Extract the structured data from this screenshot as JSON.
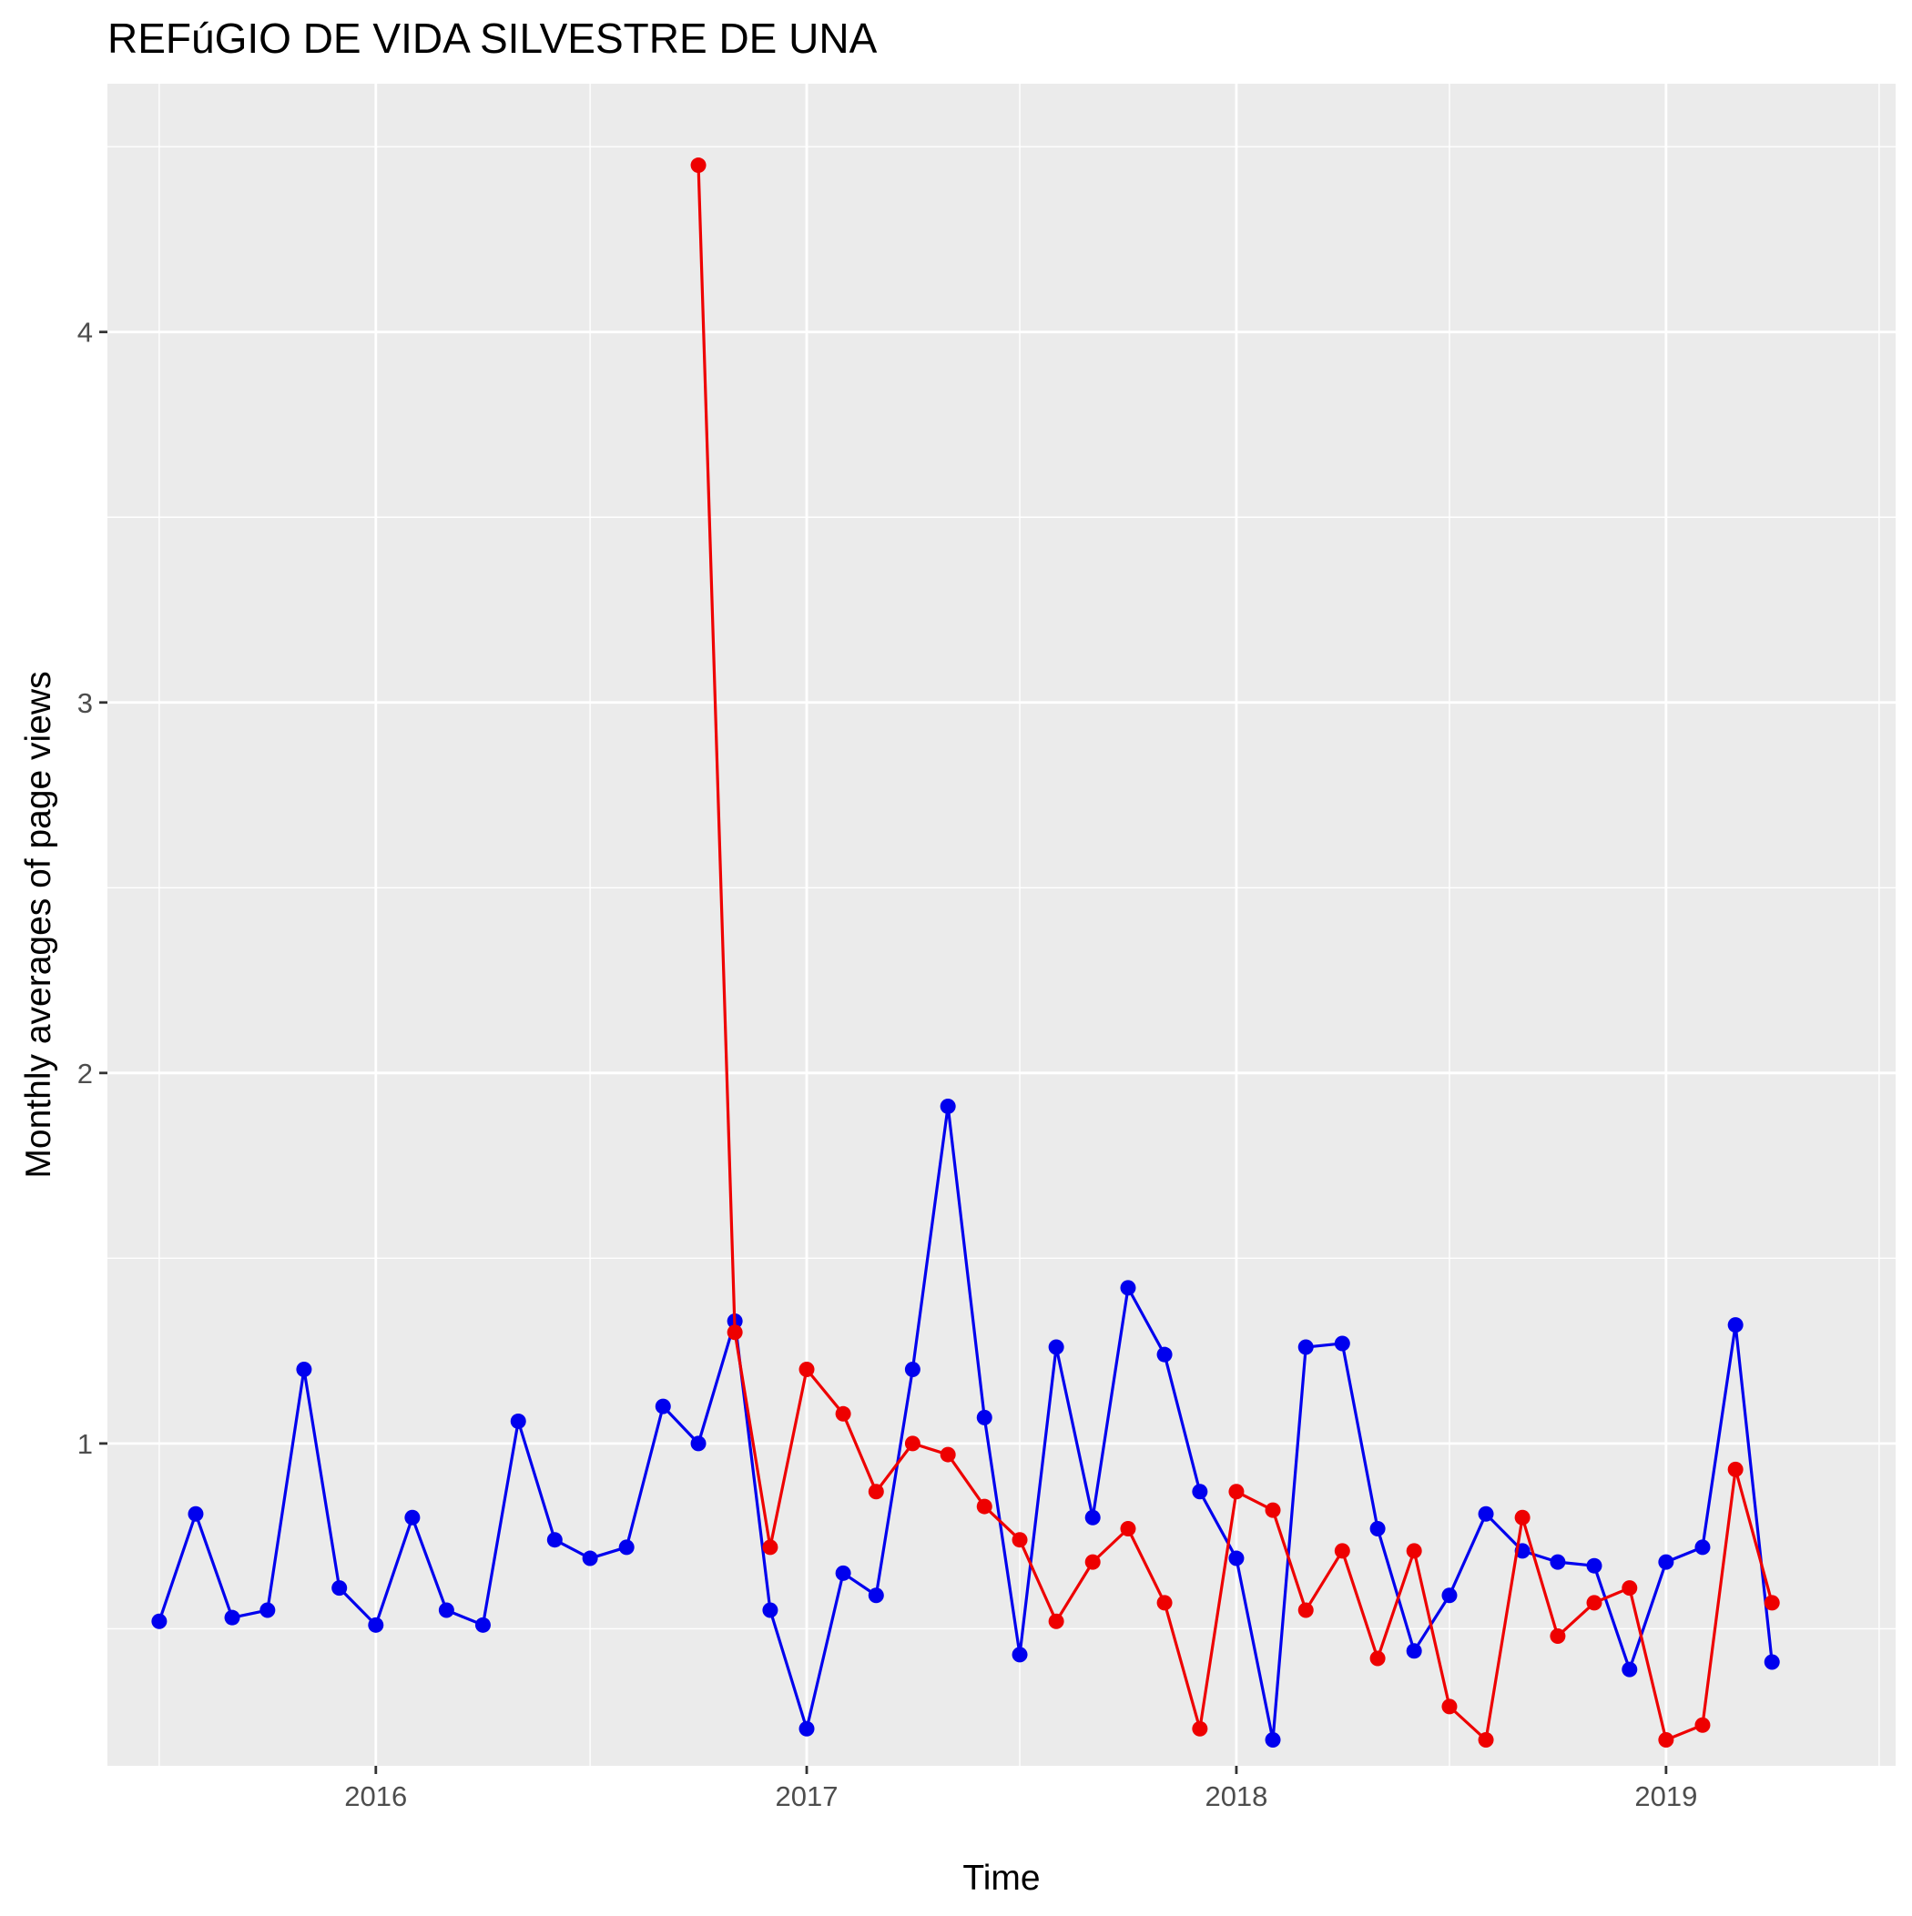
{
  "chart_data": {
    "type": "line",
    "title": "REFúGIO DE VIDA SILVESTRE DE UNA",
    "xlabel": "Time",
    "ylabel": "Monthly averages of page views",
    "x_ticks": [
      "2016",
      "2017",
      "2018",
      "2019"
    ],
    "y_ticks": [
      "1",
      "2",
      "3",
      "4"
    ],
    "xlim": [
      "2015-05-18",
      "2019-07-15"
    ],
    "ylim": [
      0.13,
      4.67
    ],
    "grid": true,
    "legend": "none",
    "colors": {
      "panel": "#ebebeb",
      "grid": "#ffffff",
      "series_1": "#0000ee",
      "series_2": "#ee0000"
    },
    "series": [
      {
        "color": "#0000ee",
        "points": [
          [
            "2015-07-01",
            0.52
          ],
          [
            "2015-08-01",
            0.81
          ],
          [
            "2015-09-01",
            0.53
          ],
          [
            "2015-10-01",
            0.55
          ],
          [
            "2015-11-01",
            1.2
          ],
          [
            "2015-12-01",
            0.61
          ],
          [
            "2016-01-01",
            0.51
          ],
          [
            "2016-02-01",
            0.8
          ],
          [
            "2016-03-01",
            0.55
          ],
          [
            "2016-04-01",
            0.51
          ],
          [
            "2016-05-01",
            1.06
          ],
          [
            "2016-06-01",
            0.74
          ],
          [
            "2016-07-01",
            0.69
          ],
          [
            "2016-08-01",
            0.72
          ],
          [
            "2016-09-01",
            1.1
          ],
          [
            "2016-10-01",
            1.0
          ],
          [
            "2016-11-01",
            1.33
          ],
          [
            "2016-12-01",
            0.55
          ],
          [
            "2017-01-01",
            0.23
          ],
          [
            "2017-02-01",
            0.65
          ],
          [
            "2017-03-01",
            0.59
          ],
          [
            "2017-04-01",
            1.2
          ],
          [
            "2017-05-01",
            1.91
          ],
          [
            "2017-06-01",
            1.07
          ],
          [
            "2017-07-01",
            0.43
          ],
          [
            "2017-08-01",
            1.26
          ],
          [
            "2017-09-01",
            0.8
          ],
          [
            "2017-10-01",
            1.42
          ],
          [
            "2017-11-01",
            1.24
          ],
          [
            "2017-12-01",
            0.87
          ],
          [
            "2018-01-01",
            0.69
          ],
          [
            "2018-02-01",
            0.2
          ],
          [
            "2018-03-01",
            1.26
          ],
          [
            "2018-04-01",
            1.27
          ],
          [
            "2018-05-01",
            0.77
          ],
          [
            "2018-06-01",
            0.44
          ],
          [
            "2018-07-01",
            0.59
          ],
          [
            "2018-08-01",
            0.81
          ],
          [
            "2018-09-01",
            0.71
          ],
          [
            "2018-10-01",
            0.68
          ],
          [
            "2018-11-01",
            0.67
          ],
          [
            "2018-12-01",
            0.39
          ],
          [
            "2019-01-01",
            0.68
          ],
          [
            "2019-02-01",
            0.72
          ],
          [
            "2019-03-01",
            1.32
          ],
          [
            "2019-04-01",
            0.41
          ]
        ]
      },
      {
        "color": "#ee0000",
        "points": [
          [
            "2016-10-01",
            4.45
          ],
          [
            "2016-11-01",
            1.3
          ],
          [
            "2016-12-01",
            0.72
          ],
          [
            "2017-01-01",
            1.2
          ],
          [
            "2017-02-01",
            1.08
          ],
          [
            "2017-03-01",
            0.87
          ],
          [
            "2017-04-01",
            1.0
          ],
          [
            "2017-05-01",
            0.97
          ],
          [
            "2017-06-01",
            0.83
          ],
          [
            "2017-07-01",
            0.74
          ],
          [
            "2017-08-01",
            0.52
          ],
          [
            "2017-09-01",
            0.68
          ],
          [
            "2017-10-01",
            0.77
          ],
          [
            "2017-11-01",
            0.57
          ],
          [
            "2017-12-01",
            0.23
          ],
          [
            "2018-01-01",
            0.87
          ],
          [
            "2018-02-01",
            0.82
          ],
          [
            "2018-03-01",
            0.55
          ],
          [
            "2018-04-01",
            0.71
          ],
          [
            "2018-05-01",
            0.42
          ],
          [
            "2018-06-01",
            0.71
          ],
          [
            "2018-07-01",
            0.29
          ],
          [
            "2018-08-01",
            0.2
          ],
          [
            "2018-09-01",
            0.8
          ],
          [
            "2018-10-01",
            0.48
          ],
          [
            "2018-11-01",
            0.57
          ],
          [
            "2018-12-01",
            0.61
          ],
          [
            "2019-01-01",
            0.2
          ],
          [
            "2019-02-01",
            0.24
          ],
          [
            "2019-03-01",
            0.93
          ],
          [
            "2019-04-01",
            0.57
          ]
        ]
      }
    ]
  }
}
